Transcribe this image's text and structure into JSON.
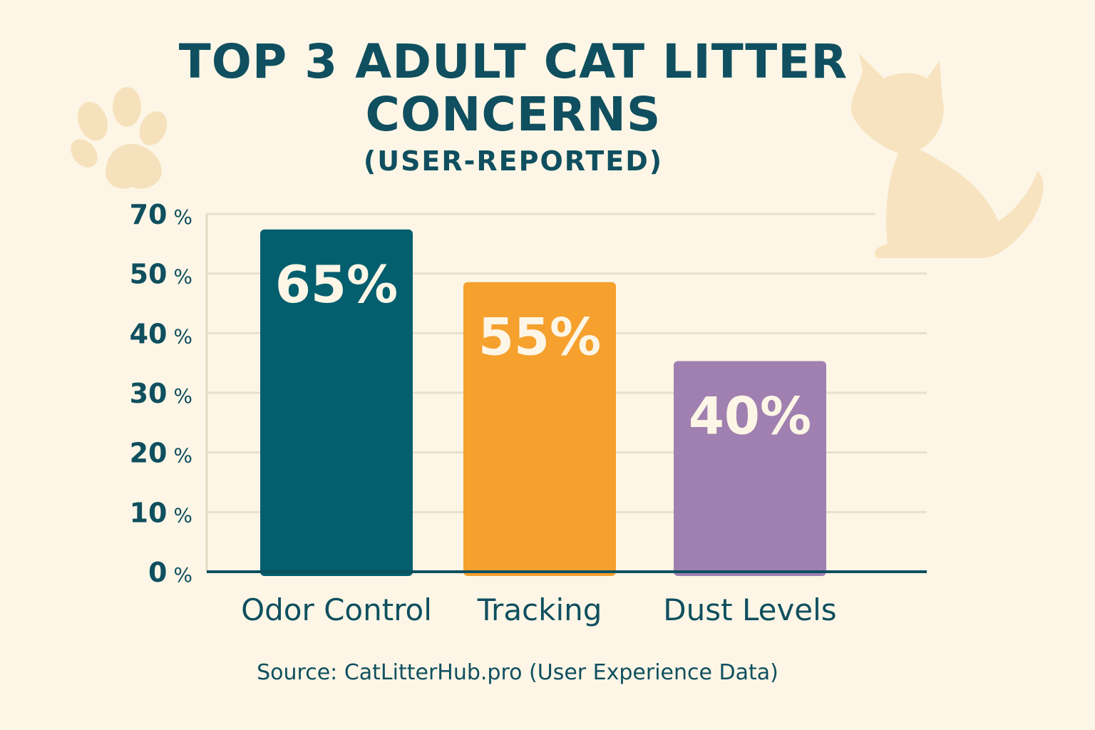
{
  "chart_data": {
    "type": "bar",
    "title": [
      "TOP 3 ADULT CAT LITTER",
      "CONCERNS"
    ],
    "subtitle": "(USER-REPORTED)",
    "categories": [
      "Odor Control",
      "Tracking",
      "Dust Levels"
    ],
    "values": [
      65,
      55,
      40
    ],
    "data_labels": [
      "65%",
      "55%",
      "40%"
    ],
    "colors": [
      "#035e6e",
      "#f6a02d",
      "#a080b0"
    ],
    "ytick_labels": [
      "0%",
      "10%",
      "20%",
      "30%",
      "40%",
      "50%",
      "70%"
    ],
    "ylim": [
      0,
      70
    ],
    "xlabel": "",
    "ylabel": "",
    "grid": true,
    "legend": "none",
    "source": "Source: CatLitterHub.pro (User Experience Data)"
  },
  "decorations": [
    "paw-print-icon",
    "cat-silhouette-icon"
  ]
}
